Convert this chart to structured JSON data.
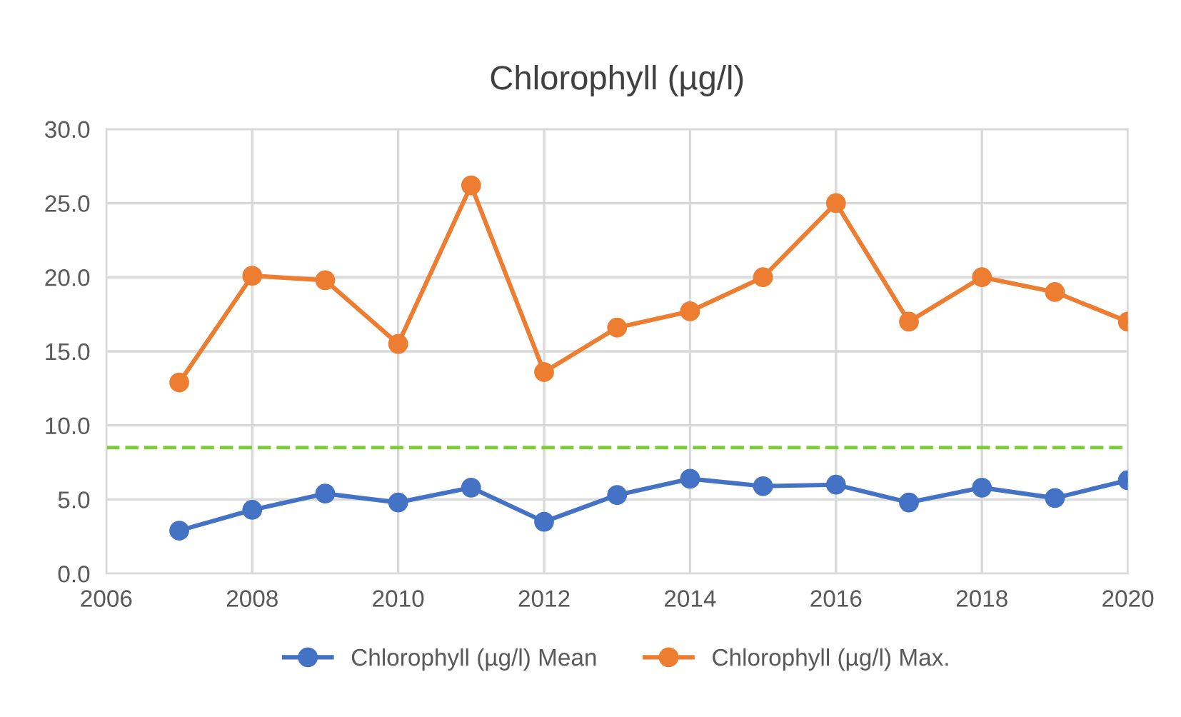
{
  "chart_data": {
    "type": "line",
    "title": "Chlorophyll (µg/l)",
    "x": [
      2007,
      2008,
      2009,
      2010,
      2011,
      2012,
      2013,
      2014,
      2015,
      2016,
      2017,
      2018,
      2019,
      2020
    ],
    "series": [
      {
        "name": "Chlorophyll (µg/l) Mean",
        "color": "#4472c4",
        "values": [
          2.9,
          4.3,
          5.4,
          4.8,
          5.8,
          3.5,
          5.3,
          6.4,
          5.9,
          6.0,
          4.8,
          5.8,
          5.1,
          6.3
        ]
      },
      {
        "name": "Chlorophyll (µg/l) Max.",
        "color": "#ed7d31",
        "values": [
          12.9,
          20.1,
          19.8,
          15.5,
          26.2,
          13.6,
          16.6,
          17.7,
          20.0,
          25.0,
          17.0,
          20.0,
          19.0,
          17.0
        ]
      }
    ],
    "ref_lines": [
      {
        "axis": "y",
        "value": 8.5,
        "color": "#7dcc3c",
        "line_style": "dashed"
      }
    ],
    "xlim": [
      2006,
      2020
    ],
    "xticks": [
      2006,
      2008,
      2010,
      2012,
      2014,
      2016,
      2018,
      2020
    ],
    "ylim": [
      0,
      30
    ],
    "yticks": [
      {
        "value": 0,
        "label": "0.0"
      },
      {
        "value": 5,
        "label": "5.0"
      },
      {
        "value": 10,
        "label": "10.0"
      },
      {
        "value": 15,
        "label": "15.0"
      },
      {
        "value": 20,
        "label": "20.0"
      },
      {
        "value": 25,
        "label": "25.0"
      },
      {
        "value": 30,
        "label": "30.0"
      }
    ],
    "grid": true,
    "legend": "bottom",
    "marker": "circle",
    "line_style": "solid"
  }
}
